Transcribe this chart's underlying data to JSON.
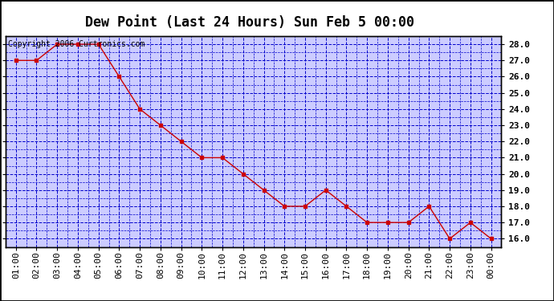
{
  "title": "Dew Point (Last 24 Hours) Sun Feb 5 00:00",
  "copyright": "Copyright 2006 Curtronics.com",
  "x_labels": [
    "01:00",
    "02:00",
    "03:00",
    "04:00",
    "05:00",
    "06:00",
    "07:00",
    "08:00",
    "09:00",
    "10:00",
    "11:00",
    "12:00",
    "13:00",
    "14:00",
    "15:00",
    "16:00",
    "17:00",
    "18:00",
    "19:00",
    "20:00",
    "21:00",
    "22:00",
    "23:00",
    "00:00"
  ],
  "x_values": [
    1,
    2,
    3,
    4,
    5,
    6,
    7,
    8,
    9,
    10,
    11,
    12,
    13,
    14,
    15,
    16,
    17,
    18,
    19,
    20,
    21,
    22,
    23,
    24
  ],
  "y_values": [
    27.0,
    27.0,
    28.0,
    28.0,
    28.0,
    26.0,
    24.0,
    23.0,
    22.0,
    21.0,
    21.0,
    20.0,
    19.0,
    18.0,
    18.0,
    19.0,
    18.0,
    17.0,
    17.0,
    17.0,
    18.0,
    16.0,
    17.0,
    16.0
  ],
  "ylim_min": 15.5,
  "ylim_max": 28.5,
  "yticks": [
    16.0,
    17.0,
    18.0,
    19.0,
    20.0,
    21.0,
    22.0,
    23.0,
    24.0,
    25.0,
    26.0,
    27.0,
    28.0
  ],
  "line_color": "#cc0000",
  "marker_color": "#cc0000",
  "bg_color": "#ccccff",
  "fig_bg_color": "#ffffff",
  "outer_border_color": "#000000",
  "grid_color": "#0000cc",
  "title_fontsize": 12,
  "copyright_fontsize": 7,
  "tick_fontsize": 8,
  "ylabel_fontsize": 9
}
